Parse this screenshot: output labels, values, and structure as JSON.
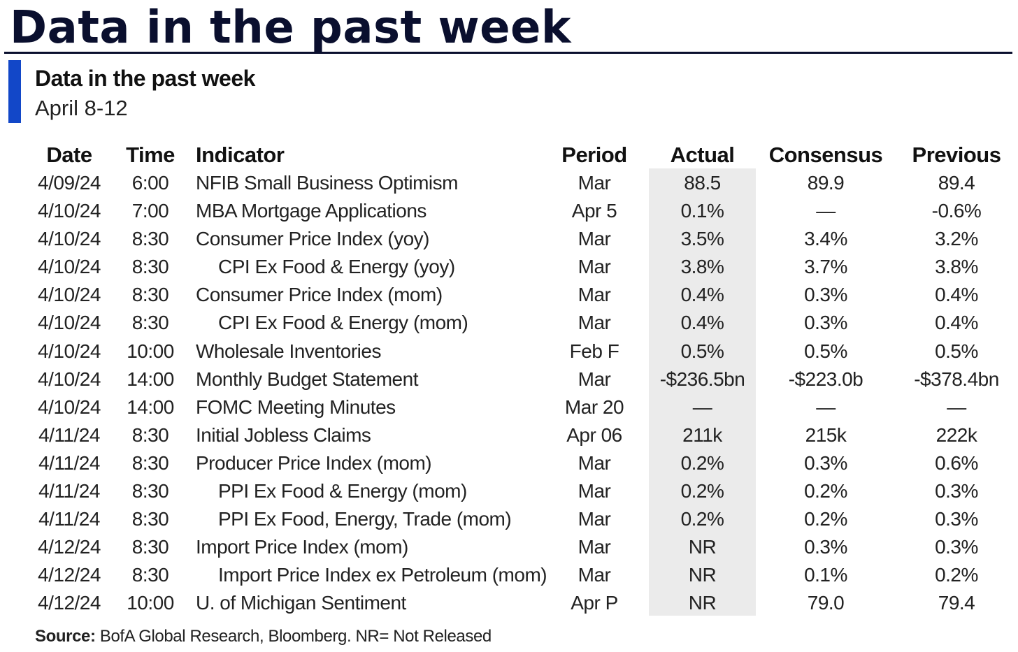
{
  "header": {
    "title": "Data in the past week",
    "subtitle": "Data in the past week",
    "date_range": "April 8-12",
    "colors": {
      "title": "#0a0f2e",
      "accent_bar": "#1247c8",
      "actual_column_shade": "#ebebeb"
    }
  },
  "table": {
    "columns": {
      "date": "Date",
      "time": "Time",
      "indicator": "Indicator",
      "period": "Period",
      "actual": "Actual",
      "consensus": "Consensus",
      "previous": "Previous"
    },
    "rows": [
      {
        "date": "4/09/24",
        "time": "6:00",
        "indicator": "NFIB Small Business Optimism",
        "indent": false,
        "period": "Mar",
        "actual": "88.5",
        "consensus": "89.9",
        "previous": "89.4"
      },
      {
        "date": "4/10/24",
        "time": "7:00",
        "indicator": "MBA Mortgage Applications",
        "indent": false,
        "period": "Apr 5",
        "actual": "0.1%",
        "consensus": "—",
        "previous": "-0.6%"
      },
      {
        "date": "4/10/24",
        "time": "8:30",
        "indicator": "Consumer Price Index (yoy)",
        "indent": false,
        "period": "Mar",
        "actual": "3.5%",
        "consensus": "3.4%",
        "previous": "3.2%"
      },
      {
        "date": "4/10/24",
        "time": "8:30",
        "indicator": "CPI Ex Food & Energy (yoy)",
        "indent": true,
        "period": "Mar",
        "actual": "3.8%",
        "consensus": "3.7%",
        "previous": "3.8%"
      },
      {
        "date": "4/10/24",
        "time": "8:30",
        "indicator": "Consumer Price Index (mom)",
        "indent": false,
        "period": "Mar",
        "actual": "0.4%",
        "consensus": "0.3%",
        "previous": "0.4%"
      },
      {
        "date": "4/10/24",
        "time": "8:30",
        "indicator": "CPI Ex Food & Energy (mom)",
        "indent": true,
        "period": "Mar",
        "actual": "0.4%",
        "consensus": "0.3%",
        "previous": "0.4%"
      },
      {
        "date": "4/10/24",
        "time": "10:00",
        "indicator": "Wholesale Inventories",
        "indent": false,
        "period": "Feb F",
        "actual": "0.5%",
        "consensus": "0.5%",
        "previous": "0.5%"
      },
      {
        "date": "4/10/24",
        "time": "14:00",
        "indicator": "Monthly Budget Statement",
        "indent": false,
        "period": "Mar",
        "actual": "-$236.5bn",
        "consensus": "-$223.0b",
        "previous": "-$378.4bn"
      },
      {
        "date": "4/10/24",
        "time": "14:00",
        "indicator": "FOMC Meeting Minutes",
        "indent": false,
        "period": "Mar 20",
        "actual": "—",
        "consensus": "—",
        "previous": "—"
      },
      {
        "date": "4/11/24",
        "time": "8:30",
        "indicator": "Initial Jobless Claims",
        "indent": false,
        "period": "Apr 06",
        "actual": "211k",
        "consensus": "215k",
        "previous": "222k"
      },
      {
        "date": "4/11/24",
        "time": "8:30",
        "indicator": "Producer Price Index (mom)",
        "indent": false,
        "period": "Mar",
        "actual": "0.2%",
        "consensus": "0.3%",
        "previous": "0.6%"
      },
      {
        "date": "4/11/24",
        "time": "8:30",
        "indicator": "PPI Ex Food & Energy (mom)",
        "indent": true,
        "period": "Mar",
        "actual": "0.2%",
        "consensus": "0.2%",
        "previous": "0.3%"
      },
      {
        "date": "4/11/24",
        "time": "8:30",
        "indicator": "PPI Ex Food, Energy, Trade (mom)",
        "indent": true,
        "period": "Mar",
        "actual": "0.2%",
        "consensus": "0.2%",
        "previous": "0.3%"
      },
      {
        "date": "4/12/24",
        "time": "8:30",
        "indicator": "Import Price Index (mom)",
        "indent": false,
        "period": "Mar",
        "actual": "NR",
        "consensus": "0.3%",
        "previous": "0.3%"
      },
      {
        "date": "4/12/24",
        "time": "8:30",
        "indicator": "Import Price Index ex Petroleum (mom)",
        "indent": true,
        "period": "Mar",
        "actual": "NR",
        "consensus": "0.1%",
        "previous": "0.2%"
      },
      {
        "date": "4/12/24",
        "time": "10:00",
        "indicator": "U. of Michigan Sentiment",
        "indent": false,
        "period": "Apr P",
        "actual": "NR",
        "consensus": "79.0",
        "previous": "79.4"
      }
    ]
  },
  "footer": {
    "source_label": "Source:",
    "source_text": " BofA Global Research, Bloomberg. NR= Not Released"
  }
}
